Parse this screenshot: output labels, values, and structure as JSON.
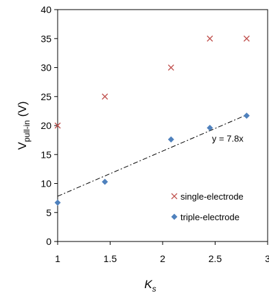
{
  "chart_data": {
    "type": "scatter",
    "title": "",
    "xlabel": "K",
    "xlabel_sub": "s",
    "ylabel": "V",
    "ylabel_sub": "pull-in",
    "ylabel_unit": " (V)",
    "xlim": [
      1,
      3
    ],
    "ylim": [
      0,
      40
    ],
    "x_ticks": [
      "1",
      "1.5",
      "2",
      "2.5",
      "3"
    ],
    "y_ticks": [
      "0",
      "5",
      "10",
      "15",
      "20",
      "25",
      "30",
      "35",
      "40"
    ],
    "grid": false,
    "legend": "bottom-right",
    "series": [
      {
        "name": "single-electrode",
        "marker": "x",
        "color": "#c0504d",
        "points": [
          {
            "x": 1.0,
            "y": 20
          },
          {
            "x": 1.45,
            "y": 25
          },
          {
            "x": 2.08,
            "y": 30
          },
          {
            "x": 2.45,
            "y": 35
          },
          {
            "x": 2.8,
            "y": 35
          }
        ]
      },
      {
        "name": "triple-electrode",
        "marker": "diamond",
        "color": "#4f81bd",
        "points": [
          {
            "x": 1.0,
            "y": 6.7
          },
          {
            "x": 1.45,
            "y": 10.3
          },
          {
            "x": 2.08,
            "y": 17.6
          },
          {
            "x": 2.45,
            "y": 19.6
          },
          {
            "x": 2.8,
            "y": 21.7
          }
        ]
      }
    ],
    "trendline": {
      "label": "y = 7.8x",
      "x": [
        1.0,
        2.8
      ],
      "y": [
        7.8,
        21.84
      ],
      "style": "dash-dot",
      "color": "#000000"
    }
  }
}
